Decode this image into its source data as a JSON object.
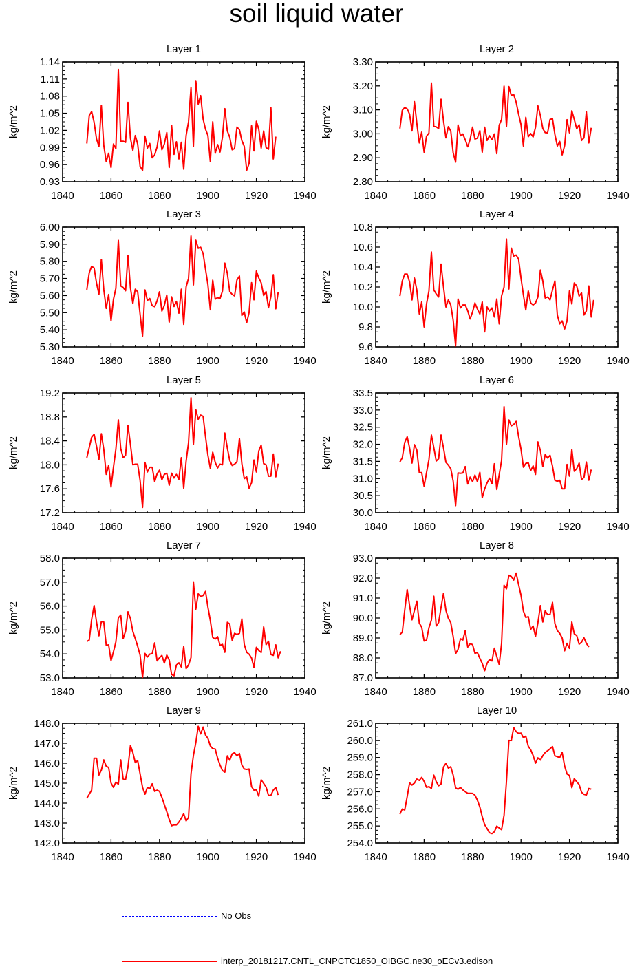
{
  "title": "soil liquid water",
  "legend": {
    "obs_label": "No Obs",
    "obs_color": "#0000ff",
    "model_label": "interp_20181217.CNTL_CNPCTC1850_OIBGC.ne30_oECv3.edison",
    "model_color": "#ff0000"
  },
  "chart_data": [
    {
      "type": "line",
      "title": "Layer 1",
      "ylabel": "kg/m^2",
      "xlabel": "",
      "xlim": [
        1840,
        1940
      ],
      "ylim": [
        0.93,
        1.14
      ],
      "yticks": [
        "0.93",
        "0.96",
        "0.99",
        "1.02",
        "1.05",
        "1.08",
        "1.11",
        "1.14"
      ],
      "xticks": [
        "1840",
        "1860",
        "1880",
        "1900",
        "1920",
        "1940"
      ],
      "x_start": 1850,
      "values": [
        0.997,
        1.046,
        1.053,
        1.034,
        1.005,
        0.992,
        1.064,
        0.994,
        0.965,
        0.98,
        0.955,
        0.996,
        0.988,
        1.127,
        1.001,
        1.001,
        0.999,
        1.069,
        1.006,
        0.985,
        1.011,
        0.996,
        0.957,
        0.95,
        1.01,
        0.989,
        0.997,
        0.972,
        0.977,
        0.991,
        1.019,
        0.986,
        0.996,
        1.016,
        0.955,
        1.029,
        0.978,
        1.0,
        0.97,
        0.999,
        0.952,
        1.011,
        1.035,
        1.095,
        0.992,
        1.107,
        1.066,
        1.081,
        1.04,
        1.022,
        1.011,
        0.965,
        1.035,
        0.98,
        0.995,
        0.982,
        1.008,
        1.058,
        1.019,
        1.008,
        0.986,
        0.988,
        1.026,
        1.021,
        1.002,
        0.992,
        0.95,
        0.962,
        1.028,
        0.984,
        1.036,
        1.022,
        0.989,
        1.019,
        0.99,
        0.987,
        1.06,
        0.97,
        1.009
      ]
    },
    {
      "type": "line",
      "title": "Layer 2",
      "ylabel": "kg/m^2",
      "xlabel": "",
      "xlim": [
        1840,
        1940
      ],
      "ylim": [
        2.8,
        3.3
      ],
      "yticks": [
        "2.80",
        "2.90",
        "3.00",
        "3.10",
        "3.20",
        "3.30"
      ],
      "xticks": [
        "1840",
        "1860",
        "1880",
        "1900",
        "1920",
        "1940"
      ],
      "x_start": 1850,
      "values": [
        3.022,
        3.098,
        3.11,
        3.104,
        3.082,
        3.012,
        3.134,
        3.044,
        2.962,
        3.007,
        2.923,
        2.99,
        3.003,
        3.212,
        3.032,
        3.029,
        3.022,
        3.144,
        3.054,
        2.983,
        3.03,
        3.012,
        2.921,
        2.882,
        3.037,
        2.992,
        2.999,
        2.975,
        2.946,
        2.977,
        3.028,
        2.978,
        2.982,
        3.013,
        2.923,
        3.028,
        2.972,
        2.992,
        2.976,
        2.999,
        2.917,
        3.036,
        3.06,
        3.199,
        3.031,
        3.197,
        3.16,
        3.164,
        3.132,
        3.082,
        3.039,
        2.949,
        3.069,
        2.988,
        3.001,
        2.987,
        3.027,
        3.117,
        3.077,
        3.022,
        3.005,
        3.004,
        3.06,
        3.063,
        2.997,
        2.949,
        2.968,
        2.912,
        2.951,
        3.059,
        3.004,
        3.096,
        3.06,
        3.021,
        3.038,
        2.972,
        2.983,
        3.092,
        2.962,
        3.025
      ]
    },
    {
      "type": "line",
      "title": "Layer 3",
      "ylabel": "kg/m^2",
      "xlabel": "",
      "xlim": [
        1840,
        1940
      ],
      "ylim": [
        5.3,
        6.0
      ],
      "yticks": [
        "5.30",
        "5.40",
        "5.50",
        "5.60",
        "5.70",
        "5.80",
        "5.90",
        "6.00"
      ],
      "xticks": [
        "1840",
        "1860",
        "1880",
        "1900",
        "1920",
        "1940"
      ],
      "x_start": 1850,
      "values": [
        5.634,
        5.733,
        5.771,
        5.761,
        5.672,
        5.608,
        5.811,
        5.636,
        5.525,
        5.606,
        5.452,
        5.578,
        5.642,
        5.922,
        5.656,
        5.647,
        5.628,
        5.834,
        5.644,
        5.553,
        5.637,
        5.622,
        5.491,
        5.363,
        5.633,
        5.572,
        5.583,
        5.541,
        5.535,
        5.569,
        5.622,
        5.509,
        5.542,
        5.603,
        5.445,
        5.593,
        5.536,
        5.566,
        5.497,
        5.637,
        5.432,
        5.651,
        5.7,
        5.948,
        5.662,
        5.923,
        5.876,
        5.882,
        5.846,
        5.753,
        5.663,
        5.517,
        5.69,
        5.579,
        5.588,
        5.583,
        5.626,
        5.789,
        5.73,
        5.623,
        5.607,
        5.598,
        5.691,
        5.714,
        5.484,
        5.504,
        5.441,
        5.5,
        5.675,
        5.575,
        5.743,
        5.703,
        5.674,
        5.6,
        5.623,
        5.529,
        5.593,
        5.722,
        5.523,
        5.621
      ]
    },
    {
      "type": "line",
      "title": "Layer 4",
      "ylabel": "kg/m^2",
      "xlabel": "",
      "xlim": [
        1840,
        1940
      ],
      "ylim": [
        9.6,
        10.8
      ],
      "yticks": [
        "9.6",
        "9.8",
        "10.0",
        "10.2",
        "10.4",
        "10.6",
        "10.8"
      ],
      "xticks": [
        "1840",
        "1860",
        "1880",
        "1900",
        "1920",
        "1940"
      ],
      "x_start": 1850,
      "values": [
        10.11,
        10.26,
        10.33,
        10.33,
        10.25,
        10.07,
        10.29,
        10.17,
        9.93,
        10.05,
        9.8,
        10.03,
        10.16,
        10.55,
        10.17,
        10.13,
        10.1,
        10.43,
        10.2,
        10.0,
        10.07,
        10.02,
        9.87,
        9.61,
        10.08,
        9.99,
        10.02,
        10.02,
        9.96,
        9.88,
        9.95,
        10.04,
        9.98,
        9.93,
        10.05,
        9.75,
        10.0,
        9.96,
        9.99,
        9.9,
        10.08,
        9.83,
        10.11,
        10.2,
        10.68,
        10.18,
        10.59,
        10.51,
        10.52,
        10.48,
        10.29,
        10.12,
        9.97,
        10.16,
        10.04,
        10.02,
        10.04,
        10.1,
        10.37,
        10.26,
        10.09,
        10.1,
        10.07,
        10.17,
        10.26,
        9.92,
        9.83,
        9.86,
        9.78,
        9.86,
        10.16,
        10.03,
        10.24,
        10.21,
        10.11,
        10.14,
        9.92,
        9.96,
        10.21,
        9.9,
        10.07
      ]
    },
    {
      "type": "line",
      "title": "Layer 5",
      "ylabel": "kg/m^2",
      "xlabel": "",
      "xlim": [
        1840,
        1940
      ],
      "ylim": [
        17.2,
        19.2
      ],
      "yticks": [
        "17.2",
        "17.6",
        "18.0",
        "18.4",
        "18.8",
        "19.2"
      ],
      "xticks": [
        "1840",
        "1860",
        "1880",
        "1900",
        "1920",
        "1940"
      ],
      "x_start": 1850,
      "values": [
        18.12,
        18.29,
        18.46,
        18.51,
        18.31,
        18.09,
        18.52,
        18.26,
        17.84,
        17.99,
        17.63,
        17.96,
        18.26,
        18.75,
        18.27,
        18.12,
        18.16,
        18.66,
        18.34,
        18.0,
        18.01,
        18.01,
        17.74,
        17.29,
        18.04,
        17.88,
        17.96,
        17.96,
        17.72,
        17.85,
        17.91,
        17.75,
        17.84,
        17.86,
        17.66,
        17.86,
        17.78,
        17.84,
        17.76,
        18.12,
        17.61,
        18.06,
        18.37,
        19.12,
        18.34,
        18.92,
        18.76,
        18.83,
        18.81,
        18.47,
        18.16,
        17.94,
        18.21,
        18.04,
        17.95,
        18.01,
        18.0,
        18.53,
        18.28,
        18.07,
        17.99,
        18.01,
        18.05,
        18.44,
        18.02,
        17.77,
        17.8,
        17.61,
        17.7,
        18.08,
        17.88,
        18.23,
        18.33,
        18.02,
        18.0,
        17.81,
        17.81,
        18.18,
        17.8,
        18.02
      ]
    },
    {
      "type": "line",
      "title": "Layer 6",
      "ylabel": "kg/m^2",
      "xlabel": "",
      "xlim": [
        1840,
        1940
      ],
      "ylim": [
        30.0,
        33.5
      ],
      "yticks": [
        "30.0",
        "30.5",
        "31.0",
        "31.5",
        "32.0",
        "32.5",
        "33.0",
        "33.5"
      ],
      "xticks": [
        "1840",
        "1860",
        "1880",
        "1900",
        "1920",
        "1940"
      ],
      "x_start": 1850,
      "values": [
        31.48,
        31.61,
        32.05,
        32.22,
        31.89,
        31.45,
        31.99,
        31.83,
        31.17,
        31.17,
        30.77,
        31.17,
        31.55,
        32.27,
        31.9,
        31.51,
        31.58,
        32.27,
        31.89,
        31.47,
        31.39,
        31.29,
        30.93,
        30.21,
        31.16,
        31.15,
        31.16,
        31.35,
        30.84,
        31.04,
        30.91,
        31.1,
        30.91,
        31.18,
        30.44,
        30.7,
        30.87,
        31.01,
        30.85,
        31.43,
        30.68,
        31.11,
        31.53,
        33.1,
        32.0,
        32.71,
        32.54,
        32.58,
        32.67,
        32.23,
        31.86,
        31.33,
        31.44,
        31.46,
        31.23,
        31.37,
        31.12,
        32.07,
        31.82,
        31.35,
        31.7,
        31.6,
        31.68,
        31.36,
        30.95,
        30.92,
        30.95,
        30.7,
        30.7,
        31.41,
        31.07,
        31.85,
        31.21,
        31.29,
        31.45,
        30.97,
        31.03,
        31.48,
        30.95,
        31.26
      ]
    },
    {
      "type": "line",
      "title": "Layer 7",
      "ylabel": "kg/m^2",
      "xlabel": "",
      "xlim": [
        1840,
        1940
      ],
      "ylim": [
        53.0,
        58.0
      ],
      "yticks": [
        "53.0",
        "54.0",
        "55.0",
        "56.0",
        "57.0",
        "58.0"
      ],
      "xticks": [
        "1840",
        "1860",
        "1880",
        "1900",
        "1920",
        "1940"
      ],
      "x_start": 1850,
      "values": [
        54.52,
        54.58,
        55.44,
        56.02,
        55.33,
        54.76,
        55.35,
        55.33,
        54.36,
        54.38,
        53.72,
        54.09,
        54.5,
        55.51,
        55.62,
        54.64,
        54.95,
        55.76,
        55.48,
        54.94,
        54.64,
        54.32,
        53.95,
        53.02,
        54.02,
        53.87,
        53.99,
        54.01,
        54.46,
        53.71,
        53.84,
        53.94,
        53.62,
        53.95,
        53.75,
        53.14,
        53.09,
        53.54,
        53.63,
        53.46,
        54.31,
        53.39,
        53.54,
        53.85,
        57.01,
        55.87,
        56.51,
        56.4,
        56.44,
        56.61,
        55.95,
        55.39,
        54.69,
        54.62,
        54.72,
        54.36,
        54.4,
        54.07,
        55.32,
        55.25,
        54.57,
        54.86,
        54.81,
        54.86,
        55.46,
        54.4,
        54.07,
        53.99,
        53.83,
        53.43,
        54.28,
        54.14,
        54.06,
        55.13,
        54.39,
        54.53,
        53.98,
        53.94,
        54.38,
        53.84,
        54.11
      ]
    },
    {
      "type": "line",
      "title": "Layer 8",
      "ylabel": "kg/m^2",
      "xlabel": "",
      "xlim": [
        1840,
        1940
      ],
      "ylim": [
        87.0,
        93.0
      ],
      "yticks": [
        "87.0",
        "88.0",
        "89.0",
        "90.0",
        "91.0",
        "92.0",
        "93.0"
      ],
      "xticks": [
        "1840",
        "1860",
        "1880",
        "1900",
        "1920",
        "1940"
      ],
      "x_start": 1850,
      "values": [
        89.17,
        89.29,
        90.38,
        91.42,
        90.62,
        89.91,
        90.38,
        90.84,
        89.74,
        89.54,
        88.85,
        88.89,
        89.51,
        89.9,
        91.09,
        89.6,
        89.78,
        90.53,
        91.24,
        90.38,
        89.99,
        89.77,
        89.08,
        88.21,
        88.43,
        88.96,
        88.9,
        89.37,
        88.55,
        88.71,
        88.67,
        88.23,
        88.27,
        87.98,
        87.72,
        87.36,
        87.73,
        87.92,
        87.85,
        88.49,
        88.07,
        87.67,
        88.73,
        91.64,
        91.46,
        92.14,
        92.08,
        91.9,
        92.25,
        91.68,
        91.14,
        90.35,
        90.03,
        90.07,
        89.43,
        89.6,
        89.08,
        89.76,
        90.62,
        89.8,
        90.36,
        90.17,
        90.18,
        90.78,
        89.72,
        89.37,
        89.23,
        89.0,
        88.36,
        88.73,
        88.48,
        89.8,
        89.21,
        89.12,
        88.69,
        88.79,
        89.01,
        88.73,
        88.55
      ]
    },
    {
      "type": "line",
      "title": "Layer 9",
      "ylabel": "kg/m^2",
      "xlabel": "",
      "xlim": [
        1840,
        1940
      ],
      "ylim": [
        142.0,
        148.0
      ],
      "yticks": [
        "142.0",
        "143.0",
        "144.0",
        "145.0",
        "146.0",
        "147.0",
        "148.0"
      ],
      "xticks": [
        "1840",
        "1860",
        "1880",
        "1900",
        "1920",
        "1940"
      ],
      "x_start": 1850,
      "values": [
        144.25,
        144.45,
        144.65,
        146.25,
        146.25,
        145.41,
        145.65,
        146.17,
        145.85,
        145.79,
        145.01,
        144.79,
        145.05,
        144.95,
        146.17,
        145.21,
        145.19,
        145.81,
        146.89,
        146.53,
        146.03,
        146.13,
        145.47,
        144.79,
        144.45,
        144.79,
        144.73,
        144.97,
        144.59,
        144.65,
        144.59,
        144.29,
        143.93,
        143.57,
        143.19,
        142.87,
        142.91,
        142.91,
        143.05,
        143.25,
        143.47,
        143.11,
        143.29,
        145.47,
        146.39,
        147.03,
        147.85,
        147.47,
        147.81,
        147.41,
        147.25,
        146.87,
        146.73,
        146.71,
        146.25,
        145.91,
        145.63,
        145.55,
        146.37,
        146.15,
        146.47,
        146.53,
        146.37,
        146.49,
        145.91,
        145.71,
        145.69,
        145.71,
        144.83,
        144.65,
        144.67,
        144.35,
        145.17,
        144.99,
        144.81,
        144.39,
        144.39,
        144.65,
        144.79,
        144.41
      ]
    },
    {
      "type": "line",
      "title": "Layer 10",
      "ylabel": "kg/m^2",
      "xlabel": "",
      "xlim": [
        1840,
        1940
      ],
      "ylim": [
        254.0,
        261.0
      ],
      "yticks": [
        "254.0",
        "255.0",
        "256.0",
        "257.0",
        "258.0",
        "259.0",
        "260.0",
        "261.0"
      ],
      "xticks": [
        "1840",
        "1860",
        "1880",
        "1900",
        "1920",
        "1940"
      ],
      "x_start": 1850,
      "values": [
        255.69,
        255.99,
        255.93,
        256.72,
        257.52,
        257.39,
        257.51,
        257.74,
        257.66,
        257.84,
        257.6,
        257.26,
        257.3,
        257.2,
        257.97,
        257.59,
        257.35,
        257.45,
        258.45,
        258.66,
        258.38,
        258.46,
        257.98,
        257.23,
        257.15,
        257.25,
        257.11,
        257.0,
        256.91,
        256.91,
        256.9,
        256.8,
        256.51,
        256.11,
        255.54,
        255.07,
        254.85,
        254.6,
        254.55,
        254.66,
        254.99,
        254.88,
        254.78,
        255.63,
        257.62,
        260.0,
        259.99,
        260.75,
        260.51,
        260.41,
        260.43,
        260.16,
        260.25,
        259.66,
        259.45,
        259.12,
        258.67,
        258.98,
        258.85,
        259.11,
        259.3,
        259.4,
        259.51,
        259.64,
        259.1,
        259.05,
        259.0,
        259.3,
        258.5,
        258.04,
        257.95,
        257.24,
        257.76,
        257.58,
        257.42,
        256.97,
        256.85,
        256.81,
        257.19,
        257.15
      ]
    }
  ]
}
